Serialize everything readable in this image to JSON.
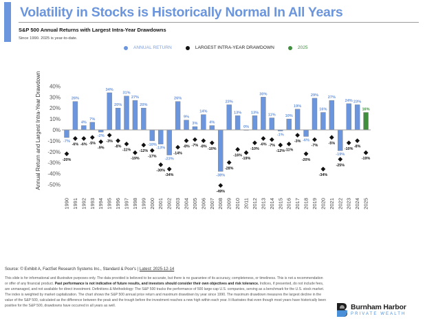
{
  "header": {
    "title": "Volatility in Stocks is Historically Normal In All Years",
    "subtitle": "S&P 500 Annual Returns with Largest Intra-Year Drawdowns",
    "note": "Since 1990. 2025 is year-to-date."
  },
  "legend": [
    {
      "label": "ANNUAL RETURN",
      "color": "#6b95dc",
      "text_color": "#7ea0dc"
    },
    {
      "label": "LARGEST INTRA-YEAR DRAWDOWN",
      "color": "#111111",
      "text_color": "#222222"
    },
    {
      "label": "2025",
      "color": "#3f8f3f",
      "text_color": "#3f8f3f"
    }
  ],
  "colors": {
    "return_bar": "#6b95dc",
    "return_label": "#6b95dc",
    "current_year_bar": "#3f8f3f",
    "drawdown_marker": "#111111",
    "accent": "#6b95dc"
  },
  "chart_data": {
    "type": "bar",
    "title": "S&P 500 Annual Returns with Largest Intra-Year Drawdowns",
    "xlabel": "",
    "ylabel": "Annual Return and Largest Intra-Year Drawdown",
    "ylim": [
      -50,
      40
    ],
    "yticks": [
      "40%",
      "30%",
      "20%",
      "10%",
      "0%",
      "-10%",
      "-20%",
      "-30%",
      "-40%",
      "-50%"
    ],
    "ytick_values": [
      40,
      30,
      20,
      10,
      0,
      -10,
      -20,
      -30,
      -40,
      -50
    ],
    "grid": false,
    "legend_position": "top-center",
    "categories": [
      "1990",
      "1991",
      "1992",
      "1993",
      "1994",
      "1995",
      "1996",
      "1997",
      "1998",
      "1999",
      "2000",
      "2001",
      "2002",
      "2003",
      "2004",
      "2005",
      "2006",
      "2007",
      "2008",
      "2009",
      "2010",
      "2011",
      "2012",
      "2013",
      "2014",
      "2015",
      "2016",
      "2017",
      "2018",
      "2019",
      "2020",
      "2021",
      "2022",
      "2023",
      "2024",
      "2025"
    ],
    "series": [
      {
        "name": "ANNUAL RETURN",
        "type": "bar",
        "values": [
          -7,
          26,
          4,
          7,
          -2,
          34,
          20,
          31,
          27,
          20,
          -10,
          -13,
          -23,
          26,
          9,
          3,
          14,
          4,
          -38,
          23,
          13,
          0,
          13,
          30,
          11,
          -1,
          10,
          19,
          -6,
          29,
          16,
          27,
          -19,
          24,
          23,
          16
        ]
      },
      {
        "name": "LARGEST INTRA-YEAR DRAWDOWN",
        "type": "scatter",
        "values": [
          -20,
          -6,
          -6,
          -5,
          -9,
          -3,
          -8,
          -11,
          -19,
          -12,
          -17,
          -30,
          -34,
          -14,
          -8,
          -7,
          -8,
          -10,
          -49,
          -28,
          -16,
          -19,
          -10,
          -6,
          -7,
          -12,
          -11,
          -3,
          -20,
          -7,
          -34,
          -5,
          -25,
          -10,
          -8,
          -19
        ]
      }
    ],
    "highlight_category": "2025",
    "value_suffix": "%"
  },
  "footer": {
    "source_prefix": "Source: © Exhibit A, FactSet Research Systems Inc., Standard & Poor's | ",
    "source_latest": "Latest: 2025-12-14",
    "disclaimer_1": "This slide is for informational and illustrative purposes only. The data provided is believed to be accurate, but there is no guarantee of its accuracy, completeness, or timeliness. This is not a recommendation or offer of any financial product. ",
    "disclaimer_bold": "Past performance is not indicative of future results, and investors should consider their own objectives and risk tolerance.",
    "disclaimer_2": " Indices, if presented, do not include fees, are unmanaged, and not available for direct investment. Definitions & Methodology: The S&P 500 tracks the performance of 500 large-cap U.S. companies, serving as a benchmark for the U.S. stock market. The index is weighted by market capitalization. The chart shows the S&P 500 annual price return and maximum drawdown by year since 1990. The maximum drawdown measures the largest decline in the value of the S&P 500, calculated as the difference between the peak and the trough before the investment reaches a new high within each year. It illustrates that even though most years have historically been positive for the S&P 500, drawdowns have occurred in all years as well."
  },
  "logo": {
    "name": "Burnham Harbor",
    "tagline": "PRIVATE WEALTH"
  }
}
